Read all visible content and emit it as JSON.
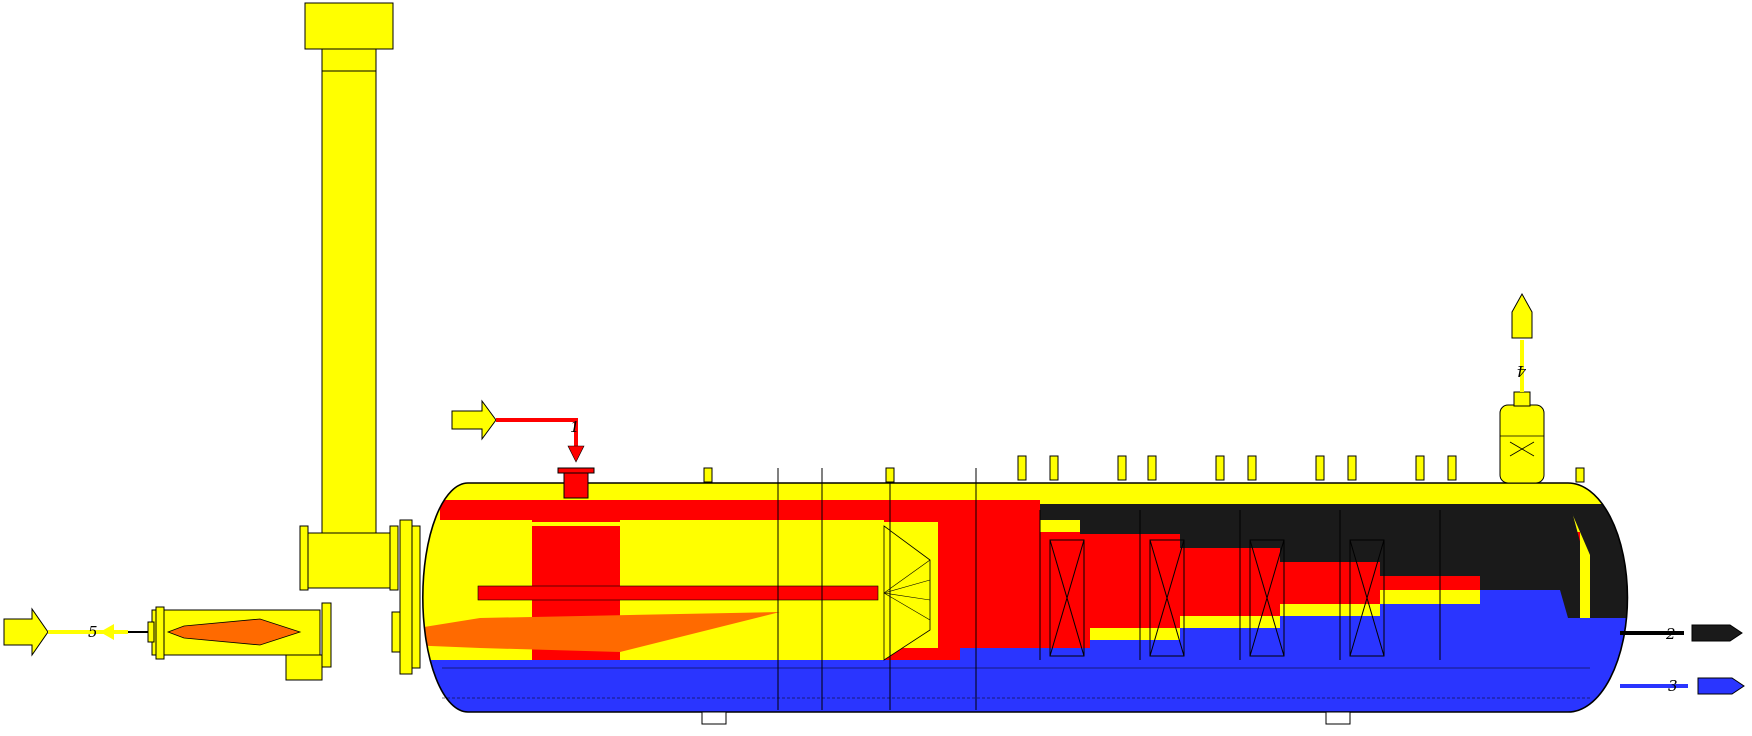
{
  "labels": {
    "inlet_oil": "1",
    "outlet_oil": "2",
    "outlet_water": "3",
    "outlet_gas": "4",
    "inlet_fuel": "5"
  },
  "colors": {
    "gas": "#ffff00",
    "hot_zone": "#ff0000",
    "oil": "#1a1a1a",
    "water": "#2a35ff",
    "flame": "#ff6a00",
    "outline": "#000000"
  },
  "icons": {
    "inlet_arrow": "hollow-right-arrow",
    "outlet_arrow": "arrow-shape"
  }
}
